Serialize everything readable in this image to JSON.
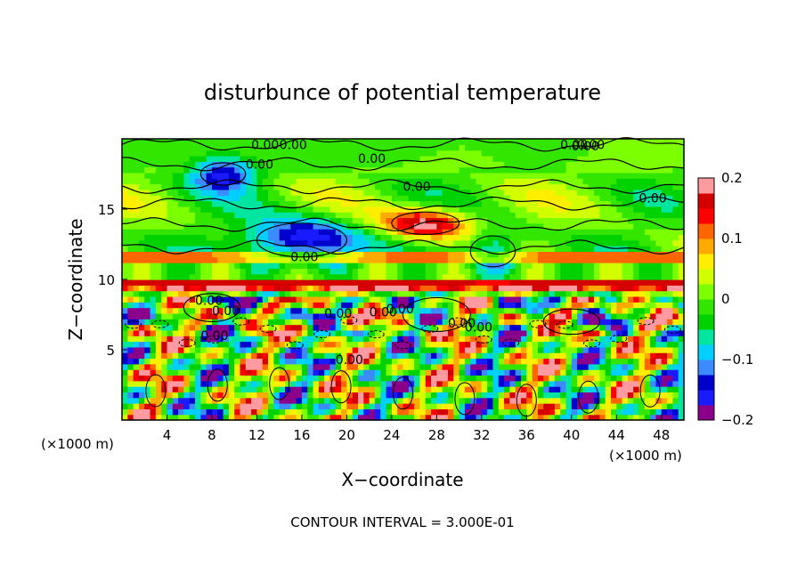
{
  "chart_data": {
    "type": "heatmap",
    "title": "disturbunce of potential temperature",
    "xlabel": "X−coordinate",
    "ylabel": "Z−coordinate",
    "x_unit_left": "(×1000 m)",
    "x_unit_right": "(×1000 m)",
    "xlim": [
      0,
      50
    ],
    "ylim": [
      0,
      20
    ],
    "x_ticks": [
      4,
      8,
      12,
      16,
      20,
      24,
      28,
      32,
      36,
      40,
      44,
      48
    ],
    "y_ticks": [
      5,
      10,
      15
    ],
    "colorbar": {
      "range": [
        -0.2,
        0.2
      ],
      "tick_values": [
        0.2,
        0.1,
        0,
        -0.1,
        -0.2
      ],
      "tick_labels": [
        "0.2",
        "0.1",
        "0",
        "−0.1",
        "−0.2"
      ],
      "colors": [
        "#8b008b",
        "#1a1aff",
        "#0000cd",
        "#3b8bff",
        "#00cfff",
        "#00e6a0",
        "#00d200",
        "#33e600",
        "#7cff00",
        "#d2ff00",
        "#ffee00",
        "#ffaa00",
        "#ff6600",
        "#ff0000",
        "#d40000",
        "#ff9aa0"
      ]
    },
    "contour_labels": [
      "0.00",
      "0.00",
      "0.00",
      "0.00",
      "0.00",
      "0.00",
      "0.00",
      "0.00",
      "0.00",
      "0.00",
      "0.00",
      "0.00",
      "0.00",
      "0.00",
      "0.00",
      "0.00",
      "0.00",
      "0.00",
      "0.00"
    ],
    "footer": "CONTOUR INTERVAL = 3.000E-01",
    "grid": false
  }
}
